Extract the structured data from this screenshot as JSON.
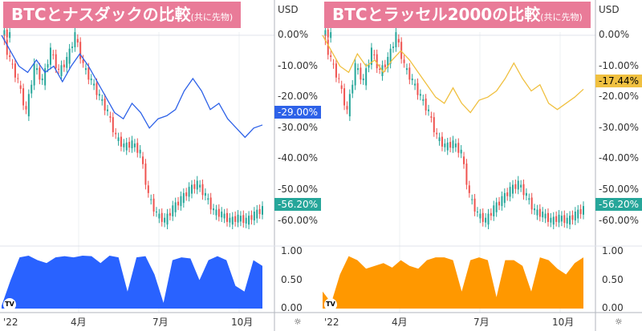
{
  "panels": [
    {
      "title": "BTCとナスダックの比較",
      "title_note": "(共に先物)",
      "currency": "USD",
      "compare_color": "#2e62e8",
      "corr_color": "#2962ff",
      "compare_label": "-29.00%",
      "btc_label": "-56.20%",
      "price_ticks": [
        "0.00%",
        "-10.00%",
        "-20.00%",
        "-30.00%",
        "-40.00%",
        "-50.00%",
        "-60.00%"
      ],
      "corr_ticks": [
        "1.00",
        "0.50",
        "0.00"
      ],
      "time_ticks": [
        "'22",
        "4月",
        "7月",
        "10月"
      ],
      "compare": [
        0,
        -5,
        -10,
        -12,
        -8,
        -12,
        -10,
        -15,
        -10,
        -6,
        -10,
        -15,
        -20,
        -25,
        -27,
        -22,
        -25,
        -30,
        -27,
        -26,
        -24,
        -18,
        -14,
        -18,
        -24,
        -22,
        -27,
        -30,
        -33,
        -30,
        -29
      ],
      "corr": [
        0.05,
        0.5,
        0.9,
        0.93,
        0.85,
        0.8,
        0.9,
        0.92,
        0.9,
        0.93,
        0.92,
        0.8,
        0.93,
        0.9,
        0.3,
        0.9,
        0.92,
        0.6,
        0.1,
        0.85,
        0.9,
        0.88,
        0.5,
        0.85,
        0.92,
        0.85,
        0.4,
        0.3,
        0.85,
        0.75
      ]
    },
    {
      "title": "BTCとラッセル2000の比較",
      "title_note": "(共に先物)",
      "currency": "USD",
      "compare_color": "#f0c040",
      "corr_color": "#ff9800",
      "compare_label": "-17.44%",
      "btc_label": "-56.20%",
      "price_ticks": [
        "0.00%",
        "-10.00%",
        "-20.00%",
        "-30.00%",
        "-40.00%",
        "-50.00%",
        "-60.00%"
      ],
      "corr_ticks": [
        "1.00",
        "0.50",
        "0.00"
      ],
      "time_ticks": [
        "'22",
        "4月",
        "7月",
        "10月"
      ],
      "compare": [
        0,
        -5,
        -10,
        -12,
        -6,
        -10,
        -8,
        -12,
        -8,
        -5,
        -8,
        -12,
        -16,
        -20,
        -22,
        -17,
        -22,
        -25,
        -21,
        -20,
        -18,
        -14,
        -9,
        -14,
        -18,
        -16,
        -22,
        -24,
        -22,
        -20,
        -17.44
      ],
      "corr": [
        0.3,
        0.1,
        0.6,
        0.92,
        0.85,
        0.7,
        0.75,
        0.8,
        0.72,
        0.85,
        0.75,
        0.7,
        0.85,
        0.9,
        0.9,
        0.85,
        0.3,
        0.85,
        0.9,
        0.85,
        0.2,
        0.85,
        0.85,
        0.75,
        0.3,
        0.9,
        0.85,
        0.7,
        0.6,
        0.8,
        0.9
      ]
    }
  ],
  "btc": [
    0,
    -8,
    -15,
    -25,
    -10,
    -15,
    -5,
    -12,
    -8,
    0,
    -10,
    -15,
    -20,
    -25,
    -33,
    -36,
    -35,
    -38,
    -52,
    -58,
    -60,
    -56,
    -53,
    -50,
    -48,
    -52,
    -57,
    -58,
    -60,
    -59,
    -60,
    -58,
    -56.2
  ],
  "colors": {
    "up": "#26a69a",
    "down": "#ef5350",
    "btc_badge": "#26a69a"
  },
  "settings_icon": "gear-icon"
}
